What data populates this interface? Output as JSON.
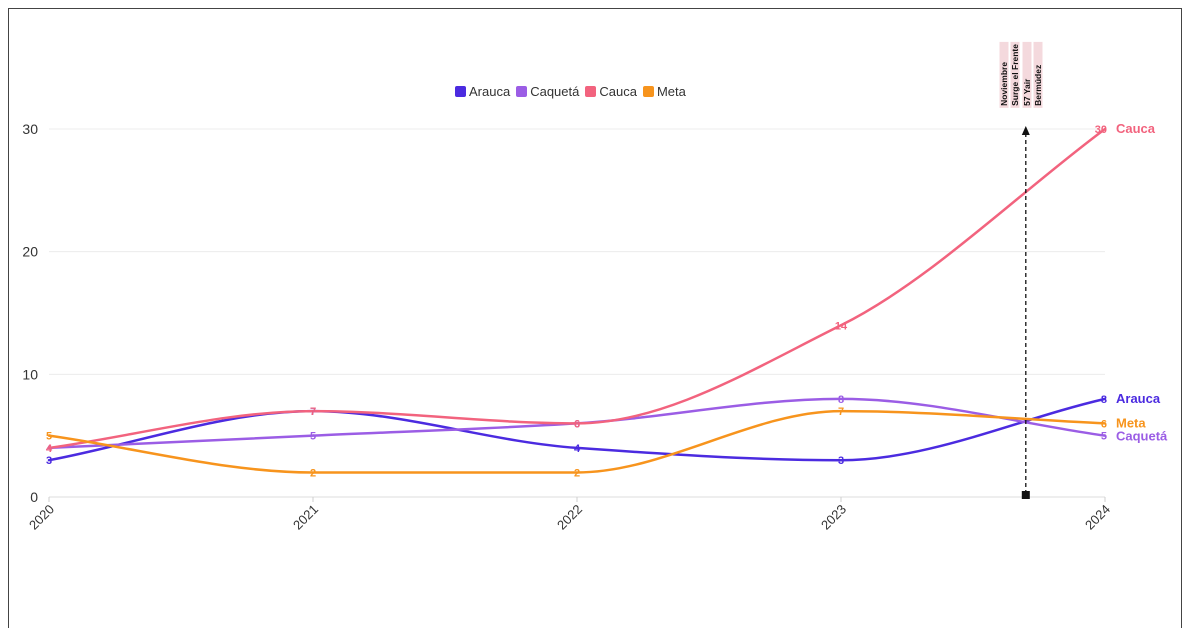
{
  "chart_data": {
    "type": "line",
    "x": [
      "2020",
      "2021",
      "2022",
      "2023",
      "2024"
    ],
    "ylim": [
      0,
      30
    ],
    "yticks": [
      0,
      10,
      20,
      30
    ],
    "grid": true,
    "legend_position": "top-center",
    "series": [
      {
        "name": "Arauca",
        "color": "#4b2be0",
        "values": [
          3,
          7,
          4,
          3,
          8
        ]
      },
      {
        "name": "Caquetá",
        "color": "#9b5de5",
        "values": [
          4,
          5,
          6,
          8,
          5
        ]
      },
      {
        "name": "Cauca",
        "color": "#f2637e",
        "values": [
          4,
          7,
          6,
          14,
          30
        ]
      },
      {
        "name": "Meta",
        "color": "#f7941d",
        "values": [
          5,
          2,
          2,
          7,
          6
        ]
      }
    ],
    "annotation": {
      "x": 2023.7,
      "lines": [
        "Noviembre",
        "Surge el Frente",
        "57 Yair",
        "Bermúdez"
      ]
    }
  }
}
